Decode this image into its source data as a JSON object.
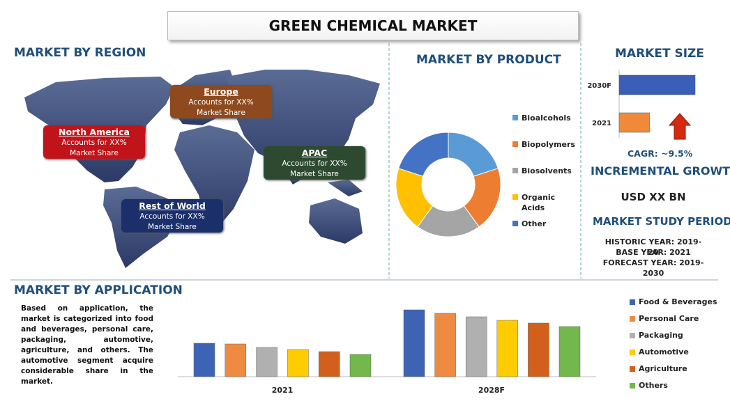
{
  "title": "GREEN CHEMICAL MARKET",
  "region": {
    "heading": "MARKET BY REGION",
    "boxes": [
      {
        "name": "North America",
        "text": "Accounts for XX% Market Share",
        "color": "#c0141a"
      },
      {
        "name": "Europe",
        "text": "Accounts for XX% Market Share",
        "color": "#8e4a1e"
      },
      {
        "name": "APAC",
        "text": "Accounts for XX% Market Share",
        "color": "#2d4a31"
      },
      {
        "name": "Rest of World",
        "text": "Accounts for XX% Market Share",
        "color": "#1b2f6b"
      }
    ]
  },
  "summary": {
    "incremental_heading": "INCREMENTAL GROWTH",
    "incremental_value": "USD XX BN",
    "period_heading": "MARKET STUDY PERIOD",
    "period_lines": [
      "HISTORIC YEAR: 2019-20",
      "BASE YEAR: 2021",
      "FORECAST YEAR: 2019-2030"
    ]
  },
  "chart_data": [
    {
      "type": "donut",
      "title": "MARKET BY PRODUCT",
      "categories": [
        "Bioalcohols",
        "Biopolymers",
        "Biosolvents",
        "Organic Acids",
        "Other"
      ],
      "values": [
        20,
        20,
        20,
        20,
        20
      ],
      "colors": [
        "#5b9bd5",
        "#ed7d31",
        "#a5a5a5",
        "#ffc000",
        "#4472c4"
      ]
    },
    {
      "type": "hbar",
      "title": "MARKET SIZE",
      "categories": [
        "2030F",
        "2021"
      ],
      "values": [
        100,
        40
      ],
      "colors": [
        "#3a5fb8",
        "#f08a3a"
      ],
      "annotations": [
        "CAGR:  ~9.5%"
      ]
    },
    {
      "type": "bar",
      "title": "MARKET BY APPLICATION",
      "description": "Based on application, the market is categorized into food and beverages, personal care, packaging, automotive, agriculture, and others. The automotive segment acquire considerable share in the market.",
      "categories": [
        "2021",
        "2028F"
      ],
      "series": [
        {
          "name": "Food & Beverages",
          "color": "#3d63b5",
          "values": [
            48,
            96
          ]
        },
        {
          "name": "Personal Care",
          "color": "#ef8a43",
          "values": [
            47,
            91
          ]
        },
        {
          "name": "Packaging",
          "color": "#b0b0b0",
          "values": [
            42,
            86
          ]
        },
        {
          "name": "Automotive",
          "color": "#ffcc00",
          "values": [
            39,
            81
          ]
        },
        {
          "name": "Agriculture",
          "color": "#d2601c",
          "values": [
            36,
            77
          ]
        },
        {
          "name": "Others",
          "color": "#72b84c",
          "values": [
            32,
            72
          ]
        }
      ]
    }
  ]
}
